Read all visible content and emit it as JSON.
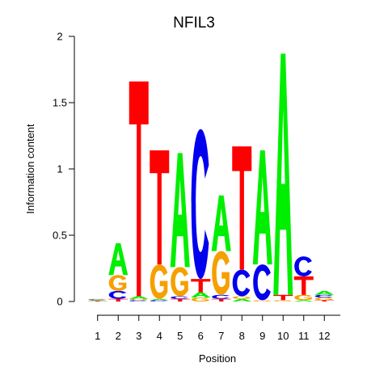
{
  "chart_data": {
    "type": "sequence-logo",
    "title": "NFIL3",
    "xlabel": "Position",
    "ylabel": "Information content",
    "ylim": [
      0,
      2
    ],
    "y_ticks": [
      "0",
      "0.5",
      "1",
      "1.5",
      "2"
    ],
    "y_tick_values": [
      0,
      0.5,
      1,
      1.5,
      2
    ],
    "x_ticks": [
      "1",
      "2",
      "3",
      "4",
      "5",
      "6",
      "7",
      "8",
      "9",
      "10",
      "11",
      "12"
    ],
    "colors": {
      "A": "#00ee00",
      "C": "#0000ee",
      "G": "#f5a000",
      "T": "#ff0000"
    },
    "positions": [
      {
        "pos": "1",
        "letters": [
          {
            "base": "T",
            "height": 0.005
          },
          {
            "base": "A",
            "height": 0.005
          },
          {
            "base": "C",
            "height": 0.005
          },
          {
            "base": "G",
            "height": 0.005
          }
        ]
      },
      {
        "pos": "2",
        "letters": [
          {
            "base": "T",
            "height": 0.02
          },
          {
            "base": "C",
            "height": 0.06
          },
          {
            "base": "G",
            "height": 0.12
          },
          {
            "base": "A",
            "height": 0.24
          }
        ]
      },
      {
        "pos": "3",
        "letters": [
          {
            "base": "C",
            "height": 0.01
          },
          {
            "base": "G",
            "height": 0.01
          },
          {
            "base": "A",
            "height": 0.02
          },
          {
            "base": "T",
            "height": 1.62
          }
        ]
      },
      {
        "pos": "4",
        "letters": [
          {
            "base": "C",
            "height": 0.01
          },
          {
            "base": "A",
            "height": 0.01
          },
          {
            "base": "G",
            "height": 0.26
          },
          {
            "base": "T",
            "height": 0.86
          }
        ]
      },
      {
        "pos": "5",
        "letters": [
          {
            "base": "T",
            "height": 0.02
          },
          {
            "base": "C",
            "height": 0.02
          },
          {
            "base": "G",
            "height": 0.22
          },
          {
            "base": "A",
            "height": 0.86
          }
        ]
      },
      {
        "pos": "6",
        "letters": [
          {
            "base": "G",
            "height": 0.03
          },
          {
            "base": "A",
            "height": 0.04
          },
          {
            "base": "T",
            "height": 0.1
          },
          {
            "base": "C",
            "height": 1.13
          }
        ]
      },
      {
        "pos": "7",
        "letters": [
          {
            "base": "T",
            "height": 0.02
          },
          {
            "base": "C",
            "height": 0.03
          },
          {
            "base": "G",
            "height": 0.33
          },
          {
            "base": "A",
            "height": 0.42
          }
        ]
      },
      {
        "pos": "8",
        "letters": [
          {
            "base": "A",
            "height": 0.02
          },
          {
            "base": "G",
            "height": 0.02
          },
          {
            "base": "C",
            "height": 0.2
          },
          {
            "base": "T",
            "height": 0.93
          }
        ]
      },
      {
        "pos": "9",
        "letters": [
          {
            "base": "G",
            "height": 0.01
          },
          {
            "base": "C",
            "height": 0.27
          },
          {
            "base": "A",
            "height": 0.86
          }
        ]
      },
      {
        "pos": "10",
        "letters": [
          {
            "base": "G",
            "height": 0.01
          },
          {
            "base": "T",
            "height": 0.04
          },
          {
            "base": "A",
            "height": 1.82
          }
        ]
      },
      {
        "pos": "11",
        "letters": [
          {
            "base": "A",
            "height": 0.01
          },
          {
            "base": "G",
            "height": 0.04
          },
          {
            "base": "T",
            "height": 0.14
          },
          {
            "base": "C",
            "height": 0.15
          }
        ]
      },
      {
        "pos": "12",
        "letters": [
          {
            "base": "T",
            "height": 0.01
          },
          {
            "base": "G",
            "height": 0.02
          },
          {
            "base": "C",
            "height": 0.02
          },
          {
            "base": "A",
            "height": 0.03
          }
        ]
      }
    ]
  }
}
